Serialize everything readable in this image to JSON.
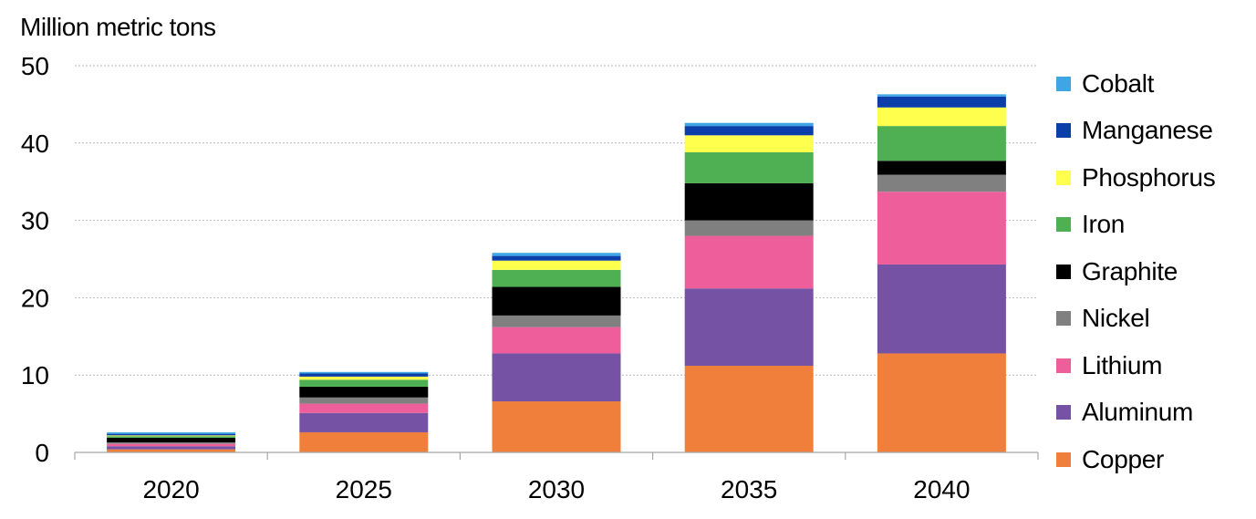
{
  "chart_data": {
    "type": "bar",
    "stacked": true,
    "title": "",
    "xlabel": "",
    "ylabel": "Million metric tons",
    "ylim": [
      0,
      50
    ],
    "yticks": [
      0,
      10,
      20,
      30,
      40,
      50
    ],
    "grid": true,
    "legend_position": "right",
    "categories": [
      "2020",
      "2025",
      "2030",
      "2035",
      "2040"
    ],
    "series": [
      {
        "name": "Copper",
        "color": "#ef7f3a",
        "values": [
          0.4,
          2.6,
          6.6,
          11.2,
          12.8
        ]
      },
      {
        "name": "Aluminum",
        "color": "#7552a3",
        "values": [
          0.4,
          2.5,
          6.2,
          10.0,
          11.5
        ]
      },
      {
        "name": "Lithium",
        "color": "#ee5e9b",
        "values": [
          0.3,
          1.2,
          3.4,
          6.8,
          9.4
        ]
      },
      {
        "name": "Nickel",
        "color": "#808080",
        "values": [
          0.2,
          0.8,
          1.5,
          2.0,
          2.2
        ]
      },
      {
        "name": "Graphite",
        "color": "#000000",
        "values": [
          0.6,
          1.4,
          3.7,
          4.8,
          1.8
        ]
      },
      {
        "name": "Iron",
        "color": "#4eb052",
        "values": [
          0.2,
          0.9,
          2.2,
          4.0,
          4.5
        ]
      },
      {
        "name": "Phosphorus",
        "color": "#ffff4d",
        "values": [
          0.1,
          0.4,
          1.2,
          2.2,
          2.4
        ]
      },
      {
        "name": "Manganese",
        "color": "#0b3ea8",
        "values": [
          0.2,
          0.4,
          0.6,
          1.2,
          1.4
        ]
      },
      {
        "name": "Cobalt",
        "color": "#3fa5e4",
        "values": [
          0.2,
          0.2,
          0.4,
          0.4,
          0.3
        ]
      }
    ]
  }
}
